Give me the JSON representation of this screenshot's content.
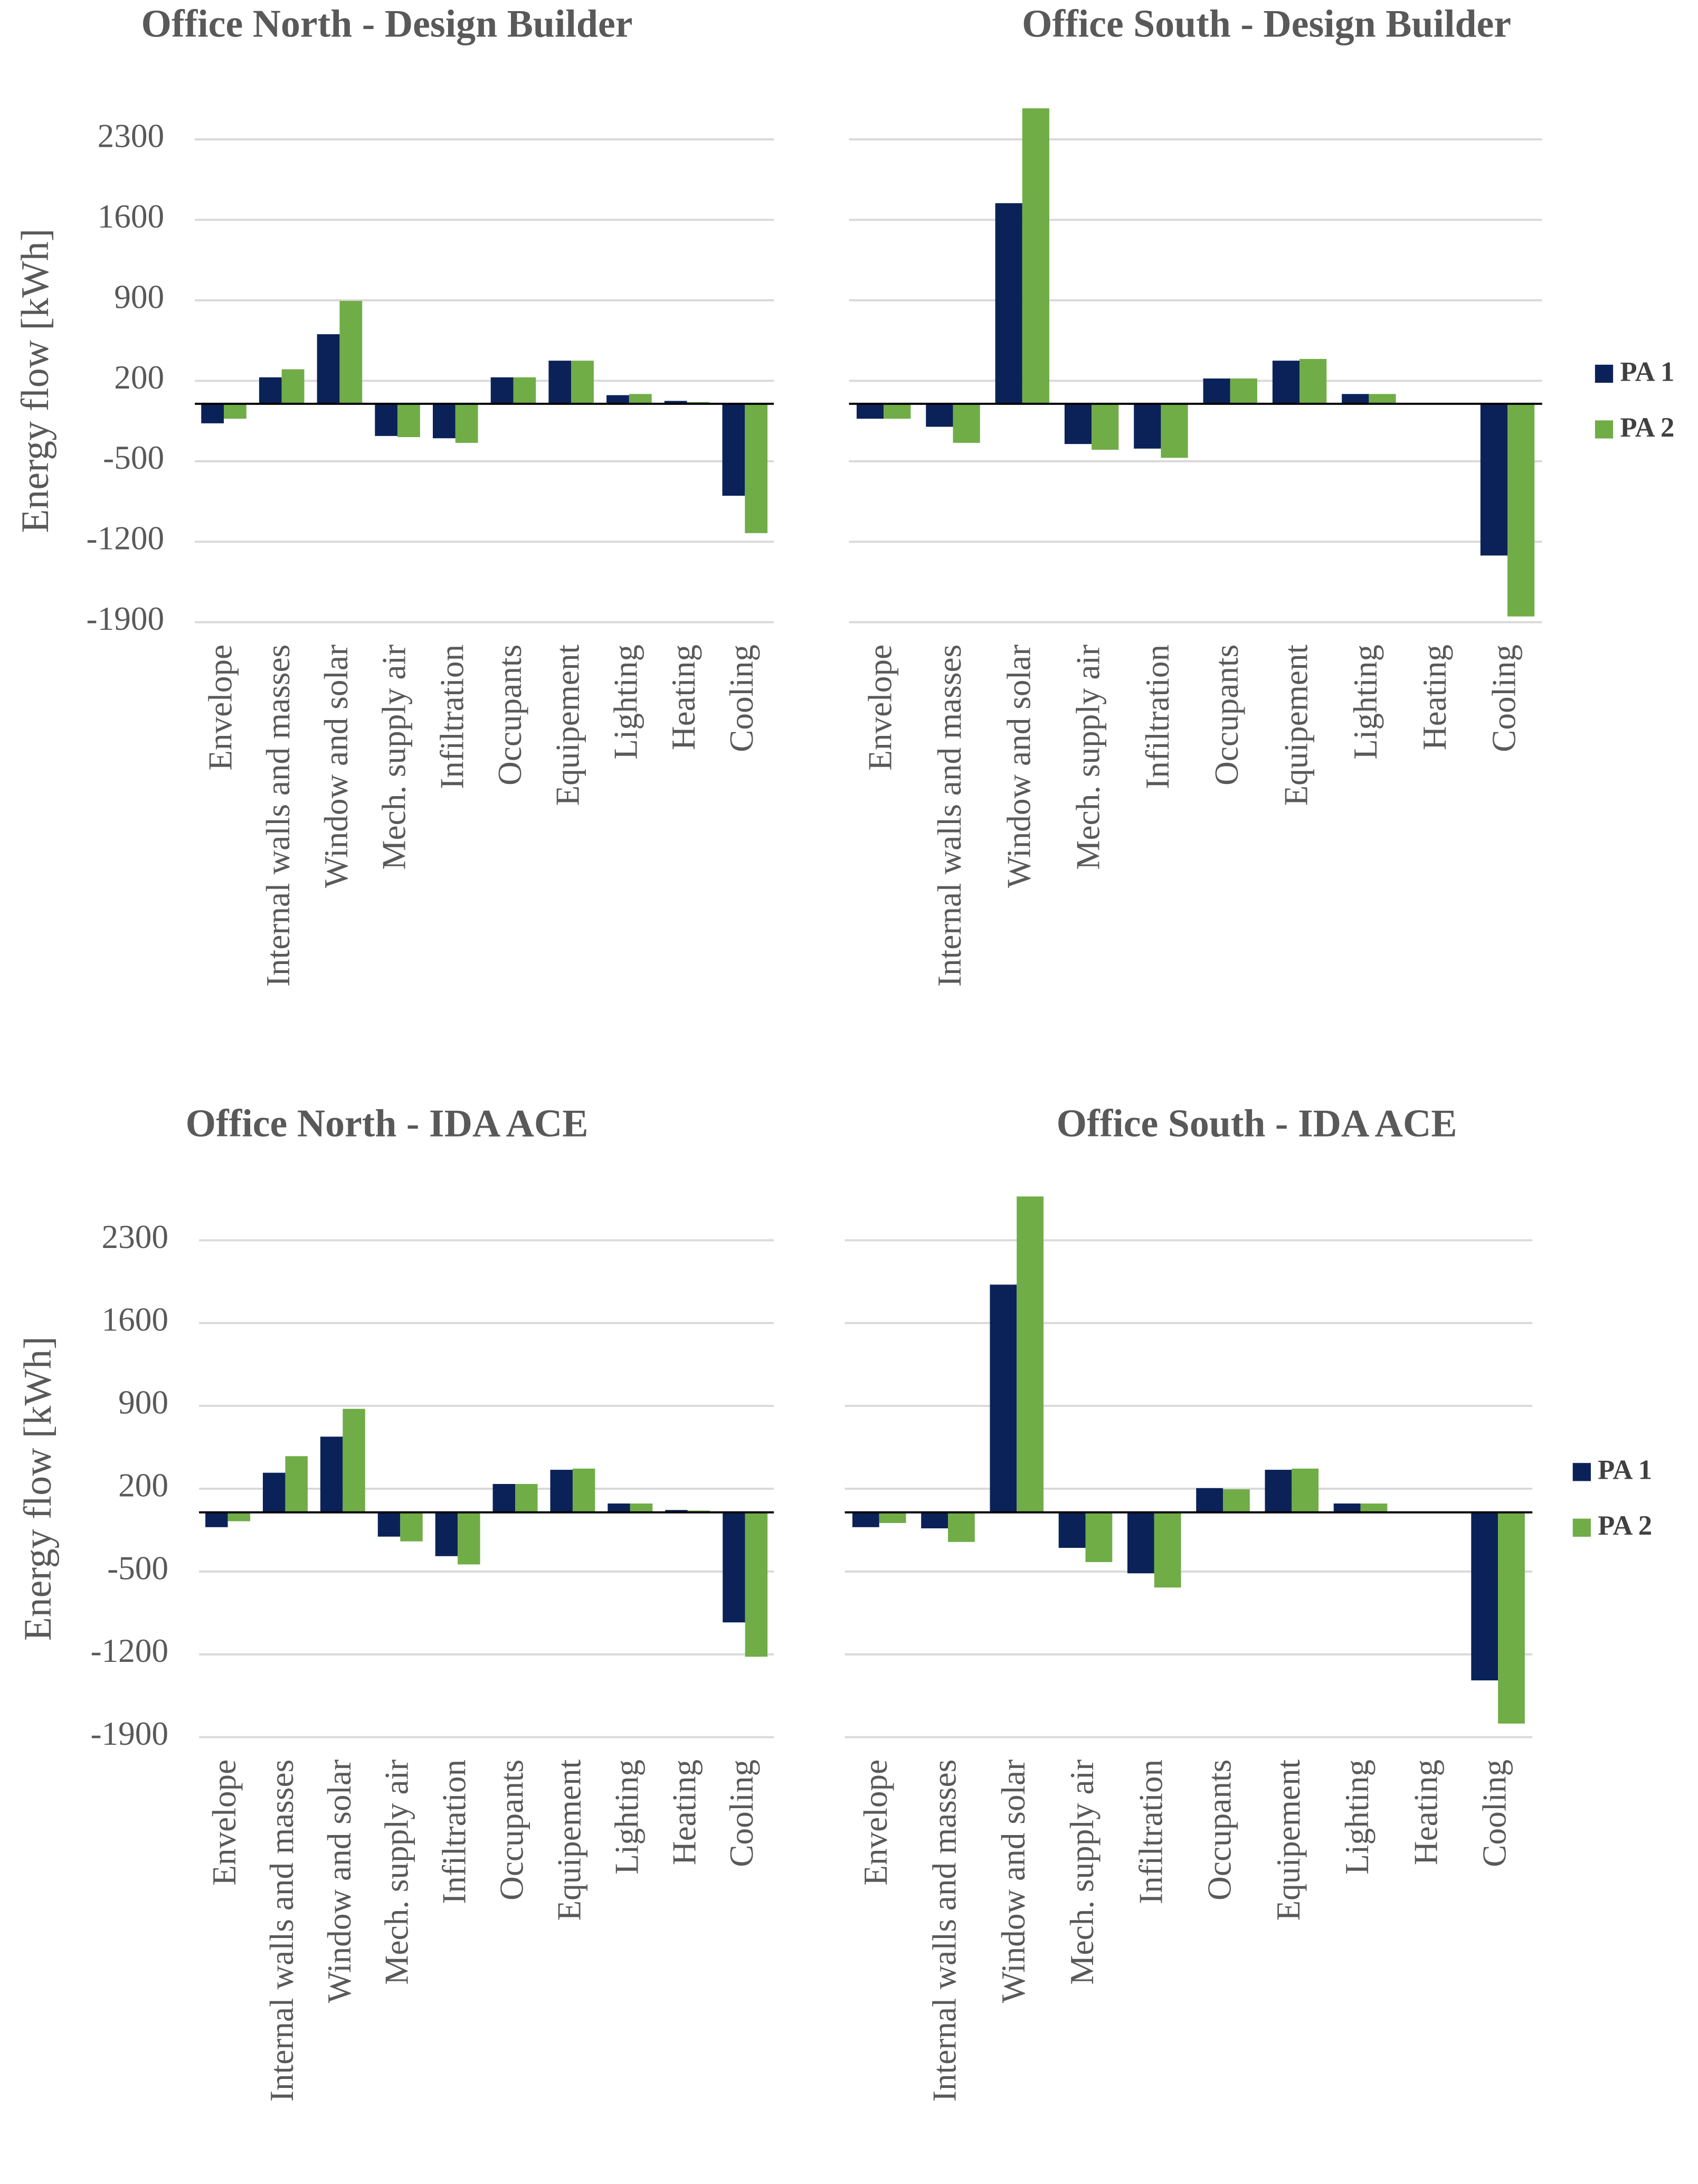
{
  "chart_data": [
    {
      "type": "bar",
      "title": "Office North  - Design Builder",
      "ylabel": "Energy  flow [kWh]",
      "categories": [
        "Envelope",
        "Internal walls and masses",
        "Window and solar",
        "Mech. supply air",
        "Infiltration",
        "Occupants",
        "Equipement",
        "Lighting",
        "Heating",
        "Cooling"
      ],
      "series": [
        {
          "name": "PA 1",
          "color": "#0b2259",
          "values": [
            -170,
            230,
            605,
            -280,
            -300,
            230,
            375,
            75,
            25,
            -800
          ]
        },
        {
          "name": "PA 2",
          "color": "#70ad47",
          "values": [
            -130,
            300,
            895,
            -290,
            -340,
            230,
            375,
            85,
            15,
            -1125
          ]
        }
      ],
      "ylim": [
        -1900,
        3000
      ],
      "yticks": [
        -1900,
        -1200,
        -500,
        200,
        900,
        1600,
        2300
      ],
      "grid": true
    },
    {
      "type": "bar",
      "title": "Office South  - Design Builder",
      "categories": [
        "Envelope",
        "Internal walls and masses",
        "Window and solar",
        "Mech. supply air",
        "Infiltration",
        "Occupants",
        "Equipement",
        "Lighting",
        "Heating",
        "Cooling"
      ],
      "series": [
        {
          "name": "PA 1",
          "color": "#0b2259",
          "values": [
            -130,
            -200,
            1745,
            -350,
            -390,
            220,
            375,
            85,
            0,
            -1320
          ]
        },
        {
          "name": "PA 2",
          "color": "#70ad47",
          "values": [
            -130,
            -340,
            2570,
            -400,
            -470,
            220,
            390,
            85,
            0,
            -1850
          ]
        }
      ],
      "ylim": [
        -1900,
        3000
      ],
      "yticks": [
        -1900,
        -1200,
        -500,
        200,
        900,
        1600,
        2300
      ],
      "ytick_labels": false,
      "grid": true,
      "legend": "right"
    },
    {
      "type": "bar",
      "title": "Office North  - IDA ACE",
      "ylabel": "Energy  flow [kWh]",
      "categories": [
        "Envelope",
        "Internal walls and masses",
        "Window and solar",
        "Mech. supply air",
        "Infiltration",
        "Occupants",
        "Equipement",
        "Lighting",
        "Heating",
        "Cooling"
      ],
      "series": [
        {
          "name": "PA 1",
          "color": "#0b2259",
          "values": [
            -125,
            335,
            640,
            -205,
            -370,
            240,
            360,
            75,
            20,
            -930
          ]
        },
        {
          "name": "PA 2",
          "color": "#70ad47",
          "values": [
            -75,
            475,
            875,
            -245,
            -440,
            240,
            370,
            75,
            15,
            -1220
          ]
        }
      ],
      "ylim": [
        -1900,
        3000
      ],
      "yticks": [
        -1900,
        -1200,
        -500,
        200,
        900,
        1600,
        2300
      ],
      "grid": true
    },
    {
      "type": "bar",
      "title": "Office South  - IDA ACE",
      "categories": [
        "Envelope",
        "Internal walls and masses",
        "Window and solar",
        "Mech. supply air",
        "Infiltration",
        "Occupants",
        "Equipement",
        "Lighting",
        "Heating",
        "Cooling"
      ],
      "series": [
        {
          "name": "PA 1",
          "color": "#0b2259",
          "values": [
            -125,
            -135,
            1925,
            -300,
            -515,
            205,
            360,
            75,
            0,
            -1420
          ]
        },
        {
          "name": "PA 2",
          "color": "#70ad47",
          "values": [
            -90,
            -250,
            2670,
            -420,
            -635,
            195,
            370,
            75,
            0,
            -1785
          ]
        }
      ],
      "ylim": [
        -1900,
        3000
      ],
      "yticks": [
        -1900,
        -1200,
        -500,
        200,
        900,
        1600,
        2300
      ],
      "ytick_labels": false,
      "grid": true,
      "legend": "right"
    }
  ]
}
